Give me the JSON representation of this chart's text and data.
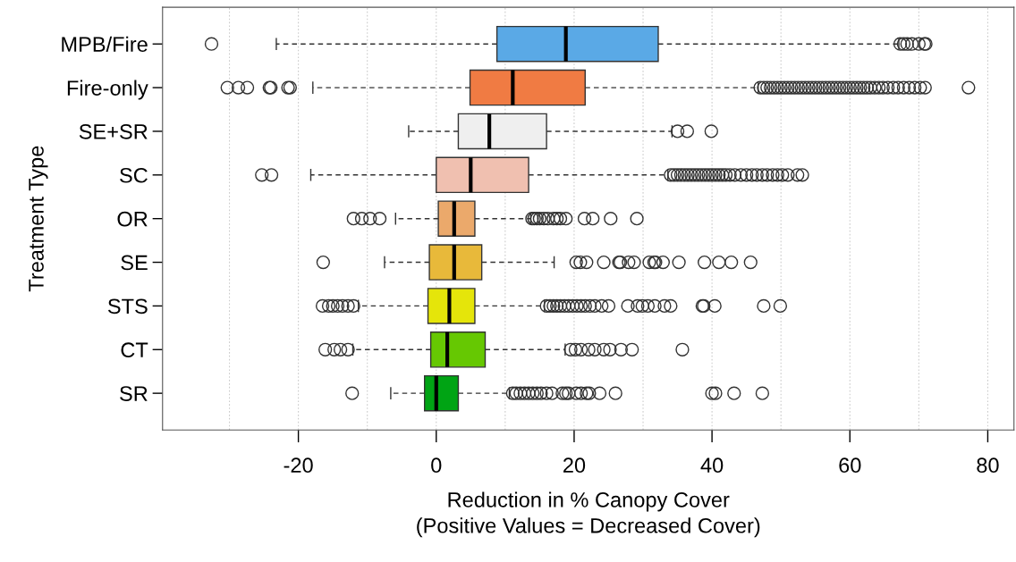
{
  "chart_data": {
    "type": "box",
    "orientation": "horizontal",
    "ylabel": "Treatment Type",
    "xlabel": "Reduction in % Canopy Cover\n(Positive Values = Decreased Cover)",
    "categories": [
      "MPB/Fire",
      "Fire-only",
      "SE+SR",
      "SC",
      "OR",
      "SE",
      "STS",
      "CT",
      "SR"
    ],
    "colors": [
      "#5aa9e6",
      "#f07b43",
      "#efefef",
      "#f0c0b0",
      "#eba96b",
      "#e8b93a",
      "#e5e50a",
      "#66c802",
      "#00a414"
    ],
    "boxes": [
      {
        "low": -23.2,
        "q1": 8.8,
        "median": 18.8,
        "q3": 32.2,
        "high": 67.1,
        "outliers": [
          -32.6,
          67.3,
          67.8,
          68.3,
          69.0,
          70.0,
          70.8,
          71.0
        ]
      },
      {
        "low": -17.9,
        "q1": 4.9,
        "median": 11.1,
        "q3": 21.6,
        "high": 46.7,
        "outliers": [
          -30.3,
          -28.7,
          -27.4,
          -24.2,
          -24.0,
          -21.5,
          -21.2,
          47.0,
          47.5,
          48.0,
          48.5,
          49.0,
          49.5,
          50.0,
          50.5,
          51.0,
          51.5,
          52.0,
          52.5,
          53.0,
          53.5,
          54.0,
          54.5,
          55.0,
          55.5,
          56.0,
          56.5,
          57.0,
          57.5,
          58.0,
          58.5,
          59.0,
          59.5,
          60.0,
          60.5,
          61.0,
          61.5,
          62.0,
          62.5,
          63.0,
          63.6,
          64.2,
          64.8,
          65.5,
          66.3,
          67.0,
          67.8,
          68.6,
          69.4,
          70.2,
          70.9,
          77.2
        ]
      },
      {
        "low": -4.0,
        "q1": 3.2,
        "median": 7.7,
        "q3": 16.0,
        "high": 34.2,
        "outliers": [
          35.0,
          36.4,
          39.9
        ]
      },
      {
        "low": -18.2,
        "q1": 0.0,
        "median": 5.0,
        "q3": 13.4,
        "high": 33.6,
        "outliers": [
          -25.3,
          -23.9,
          34.0,
          34.5,
          35.0,
          35.5,
          36.0,
          36.5,
          37.0,
          37.5,
          38.0,
          38.5,
          39.0,
          39.5,
          40.0,
          40.5,
          41.0,
          41.5,
          42.0,
          42.6,
          43.3,
          44.2,
          45.0,
          45.8,
          46.5,
          47.3,
          48.0,
          48.8,
          49.5,
          50.2,
          51.0,
          52.4,
          53.1
        ]
      },
      {
        "low": -5.9,
        "q1": 0.3,
        "median": 2.6,
        "q3": 5.6,
        "high": 13.7,
        "outliers": [
          -12.0,
          -10.8,
          -9.6,
          -8.2,
          13.9,
          14.2,
          14.6,
          15.0,
          15.6,
          16.2,
          17.0,
          17.5,
          18.0,
          18.8,
          21.5,
          22.7,
          25.3,
          29.1
        ]
      },
      {
        "low": -7.5,
        "q1": -1.0,
        "median": 2.6,
        "q3": 6.6,
        "high": 17.1,
        "outliers": [
          -16.4,
          20.3,
          20.9,
          21.8,
          24.3,
          26.5,
          26.7,
          27.9,
          28.7,
          30.9,
          31.6,
          31.8,
          32.9,
          35.2,
          38.9,
          41.0,
          42.8,
          45.6
        ]
      },
      {
        "low": -11.3,
        "q1": -1.2,
        "median": 1.9,
        "q3": 5.6,
        "high": 15.7,
        "outliers": [
          -16.5,
          -15.6,
          -15.0,
          -14.3,
          -13.6,
          -12.8,
          -12.0,
          16.0,
          16.5,
          17.0,
          17.5,
          18.0,
          18.6,
          19.2,
          19.8,
          20.4,
          21.0,
          21.6,
          22.3,
          23.0,
          24.0,
          25.0,
          27.8,
          29.2,
          29.9,
          30.7,
          31.7,
          33.1,
          34.0,
          38.6,
          38.8,
          40.4,
          47.5,
          49.9
        ]
      },
      {
        "low": -12.1,
        "q1": -0.8,
        "median": 1.6,
        "q3": 7.1,
        "high": 18.7,
        "outliers": [
          -16.1,
          -14.8,
          -13.9,
          -12.8,
          19.5,
          20.2,
          21.0,
          22.1,
          23.0,
          24.3,
          25.2,
          26.8,
          28.4,
          35.7
        ]
      },
      {
        "low": -6.6,
        "q1": -1.7,
        "median": 0.0,
        "q3": 3.2,
        "high": 10.6,
        "outliers": [
          -12.2,
          11.1,
          11.6,
          12.2,
          12.8,
          13.4,
          14.0,
          14.6,
          15.2,
          16.0,
          16.8,
          18.3,
          18.8,
          19.2,
          20.3,
          21.0,
          21.8,
          22.2,
          23.7,
          26.0,
          40.0,
          40.5,
          43.2,
          47.3
        ]
      }
    ],
    "xlim": [
      -39.7,
      83.8
    ],
    "xticks": [
      -20,
      0,
      20,
      40,
      60,
      80
    ],
    "grid": "x",
    "marker": "circle"
  }
}
